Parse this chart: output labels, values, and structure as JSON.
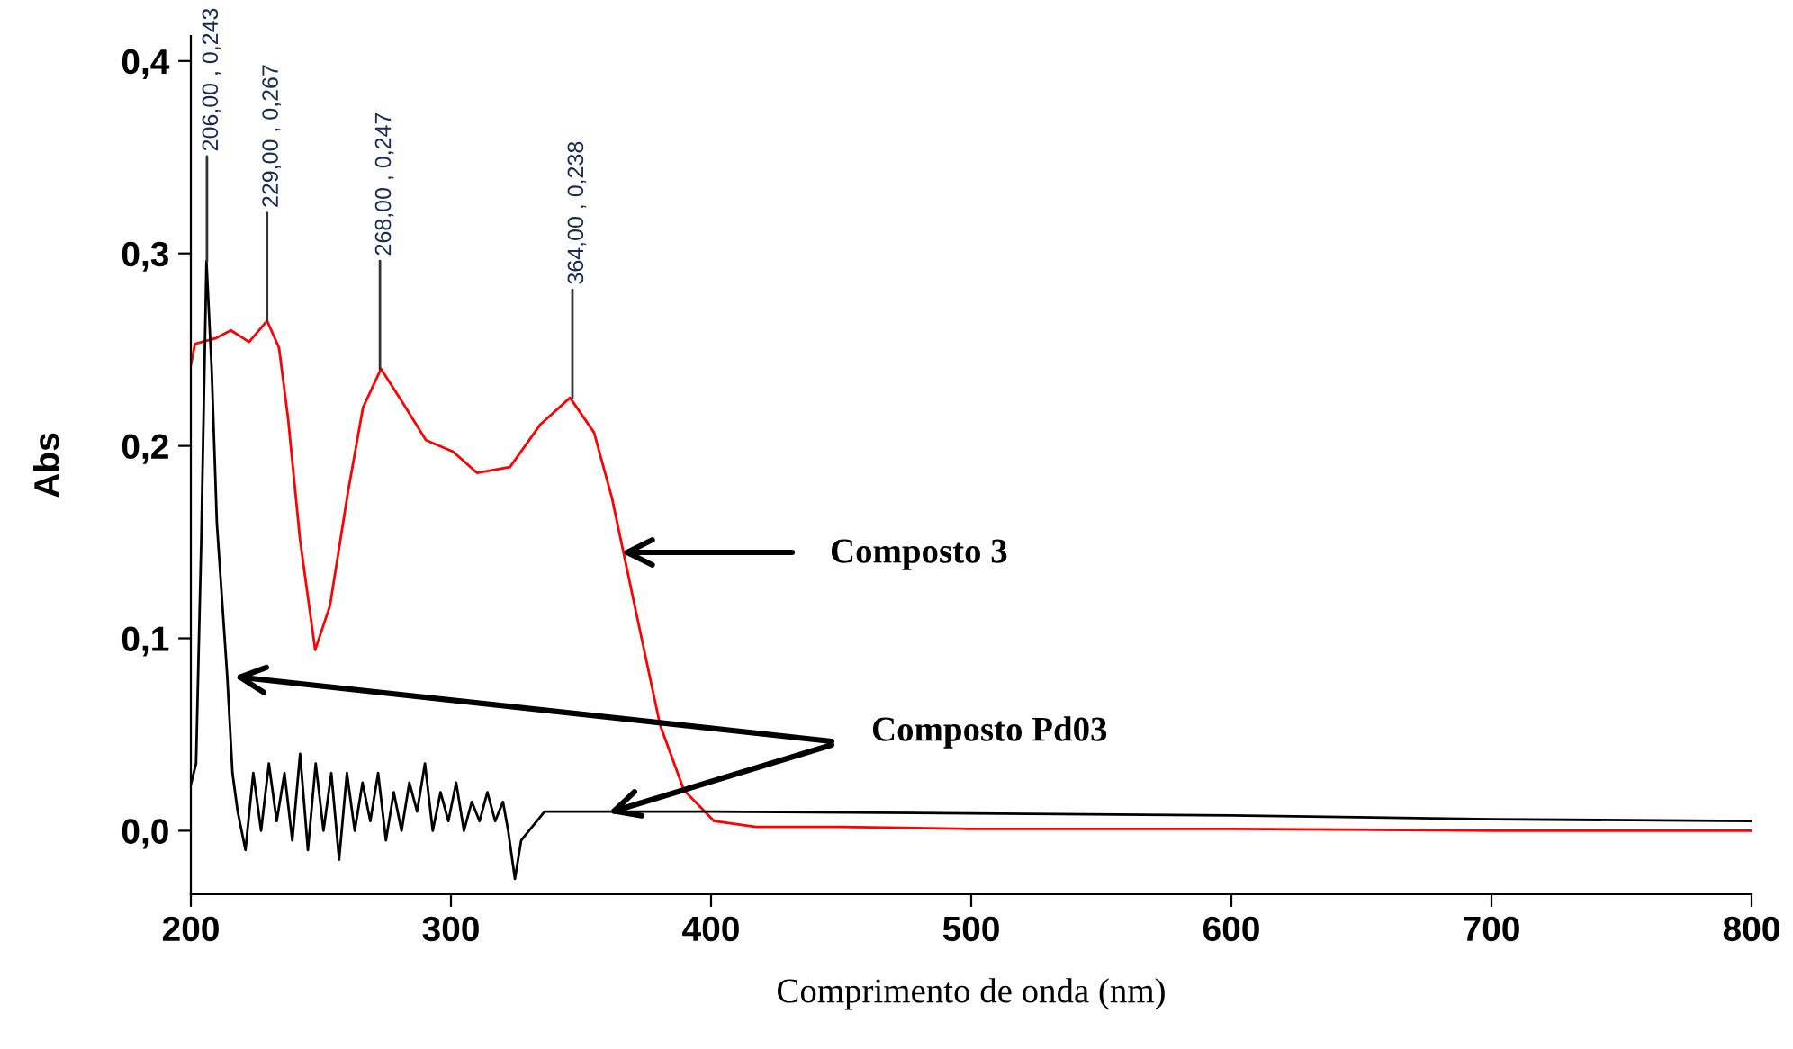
{
  "chart_data": {
    "type": "line",
    "xlabel": "Comprimento de onda (nm)",
    "ylabel": "Abs",
    "xlim": [
      200,
      800
    ],
    "ylim": [
      -0.033,
      0.413
    ],
    "xticks": [
      200,
      300,
      400,
      500,
      600,
      700,
      800
    ],
    "yticks": [
      {
        "value": 0,
        "label": "0,0"
      },
      {
        "value": 0.1,
        "label": "0,1"
      },
      {
        "value": 0.2,
        "label": "0,2"
      },
      {
        "value": 0.3,
        "label": "0,3"
      },
      {
        "value": 0.4,
        "label": "0,4"
      }
    ],
    "grid": false,
    "legend": false,
    "marker": "none",
    "line_style": "solid",
    "series": [
      {
        "color": "#ff0000",
        "x": [
          200,
          201.6,
          209.7,
          215.4,
          222.4,
          229.3,
          233.9,
          237.4,
          242,
          247.8,
          253.5,
          260.4,
          266.2,
          273.1,
          281.2,
          290.4,
          300.8,
          310,
          322.7,
          334.3,
          345.8,
          355,
          361.9,
          371.1,
          380.4,
          389.6,
          401.2,
          417.3,
          450,
          500,
          600,
          700,
          800
        ],
        "values": [
          0.242,
          0.253,
          0.256,
          0.26,
          0.254,
          0.265,
          0.251,
          0.214,
          0.151,
          0.094,
          0.117,
          0.176,
          0.22,
          0.24,
          0.223,
          0.203,
          0.197,
          0.186,
          0.189,
          0.211,
          0.225,
          0.207,
          0.173,
          0.114,
          0.055,
          0.021,
          0.005,
          0.002,
          0.002,
          0.001,
          0.001,
          0.0,
          0.0
        ]
      },
      {
        "color": "#000000",
        "x": [
          200,
          202,
          204,
          206,
          208,
          210,
          212,
          214,
          216,
          218,
          221,
          224,
          227,
          230,
          233,
          236,
          239,
          242,
          245,
          248,
          251,
          254,
          257,
          260,
          263,
          266,
          269,
          272,
          275,
          278,
          281,
          284,
          287,
          290,
          293,
          296,
          299,
          302,
          305,
          308,
          311,
          314,
          317,
          320,
          322,
          324.6,
          327,
          330,
          336,
          400,
          500,
          600,
          700,
          800
        ],
        "values": [
          0.024,
          0.035,
          0.15,
          0.296,
          0.24,
          0.16,
          0.12,
          0.08,
          0.03,
          0.01,
          -0.01,
          0.03,
          0.0,
          0.035,
          0.005,
          0.03,
          -0.005,
          0.04,
          -0.01,
          0.035,
          0.0,
          0.03,
          -0.015,
          0.03,
          0.0,
          0.025,
          0.005,
          0.03,
          -0.005,
          0.02,
          0.0,
          0.025,
          0.01,
          0.035,
          0.0,
          0.02,
          0.005,
          0.025,
          0.0,
          0.015,
          0.005,
          0.02,
          0.005,
          0.015,
          0.0,
          -0.025,
          -0.005,
          0.0,
          0.01,
          0.01,
          0.009,
          0.008,
          0.006,
          0.005
        ]
      }
    ],
    "annotations": [
      {
        "text": "206,00 , 0,243",
        "x": 206.2,
        "y": 0.296
      },
      {
        "text": "229,00 , 0,267",
        "x": 229.3,
        "y": 0.265
      },
      {
        "text": "268,00 , 0,247",
        "x": 272.7,
        "y": 0.24
      },
      {
        "text": "364,00 , 0,238",
        "x": 346.7,
        "y": 0.225
      },
      "Composto 3",
      {
        "text": "Composto Pd03",
        "x": 360.5,
        "y": 0.0093
      }
    ]
  }
}
